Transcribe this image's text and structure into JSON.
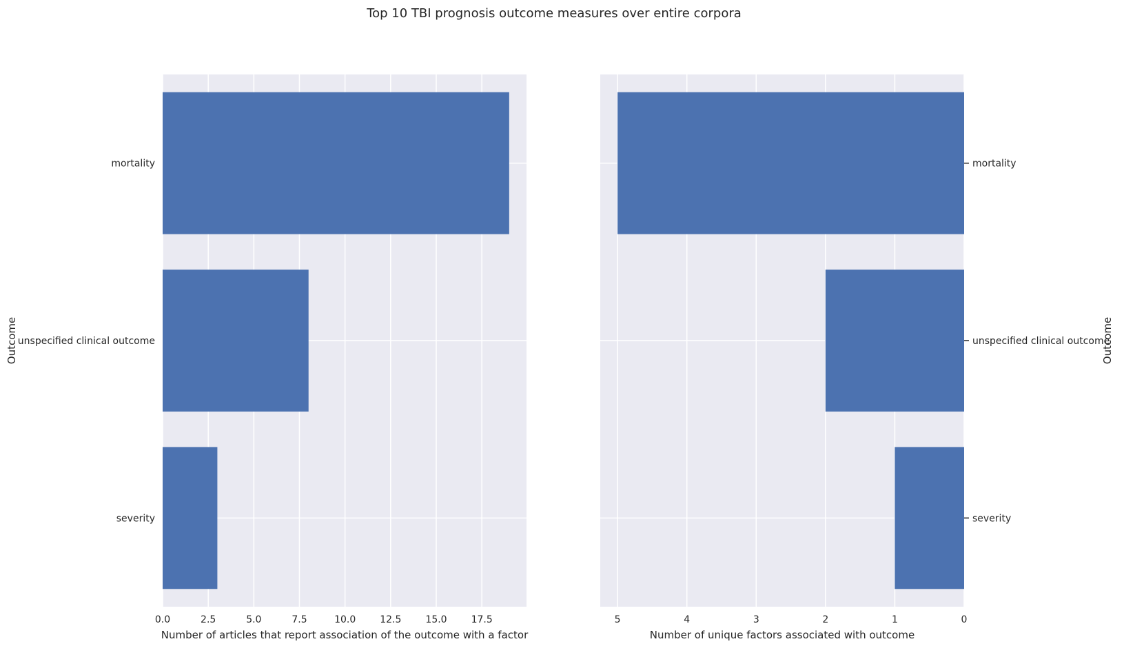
{
  "title": "Top 10 TBI prognosis outcome measures over entire corpora",
  "colors": {
    "bar": "#4c72b0",
    "axes_background": "#eaeaf2",
    "grid": "#ffffff",
    "text": "#262626"
  },
  "chart_data": [
    {
      "type": "bar",
      "orientation": "horizontal",
      "categories": [
        "mortality",
        "unspecified clinical outcome",
        "severity"
      ],
      "values": [
        19,
        8,
        3
      ],
      "xlabel": "Number of articles that report association of the outcome with a factor",
      "ylabel": "Outcome",
      "xlim": [
        0,
        19.95
      ],
      "xticks": [
        "0.0",
        "2.5",
        "5.0",
        "7.5",
        "10.0",
        "12.5",
        "15.0",
        "17.5"
      ],
      "grid": true,
      "ylabel_position": "left"
    },
    {
      "type": "bar",
      "orientation": "horizontal",
      "categories": [
        "mortality",
        "unspecified clinical outcome",
        "severity"
      ],
      "values": [
        5,
        2,
        1
      ],
      "xlabel": "Number of unique factors associated with outcome",
      "ylabel": "Outcome",
      "xlim": [
        5.25,
        0
      ],
      "x_inverted": true,
      "xticks": [
        "5",
        "4",
        "3",
        "2",
        "1",
        "0"
      ],
      "grid": true,
      "ylabel_position": "right"
    }
  ]
}
